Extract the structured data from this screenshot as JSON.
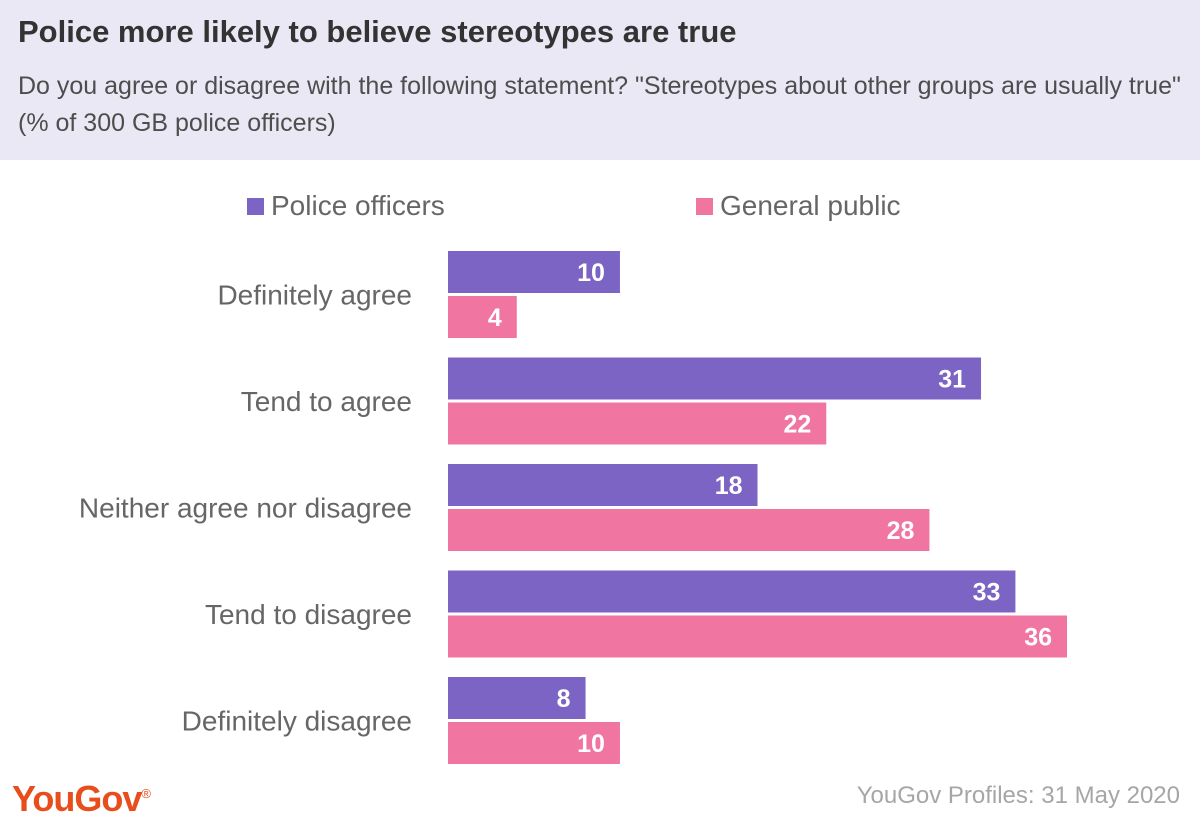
{
  "header": {
    "title": "Police more likely to believe stereotypes are true",
    "subtitle": "Do you agree or disagree with the following statement? \"Stereotypes about other groups are usually true\" (% of 300 GB police officers)"
  },
  "footer": {
    "brand": "YouGov",
    "source": "YouGov Profiles: 31 May 2020"
  },
  "chart_data": {
    "type": "bar",
    "orientation": "horizontal",
    "title": "Police more likely to believe stereotypes are true",
    "categories": [
      "Definitely agree",
      "Tend to agree",
      "Neither agree nor disagree",
      "Tend to disagree",
      "Definitely disagree"
    ],
    "series": [
      {
        "name": "Police officers",
        "color": "#7b64c3",
        "values": [
          10,
          31,
          18,
          33,
          8
        ]
      },
      {
        "name": "General public",
        "color": "#f075a0",
        "values": [
          4,
          22,
          28,
          36,
          10
        ]
      }
    ],
    "xlim": [
      0,
      36
    ],
    "grid": false,
    "legend_position": "top",
    "data_labels": true
  }
}
